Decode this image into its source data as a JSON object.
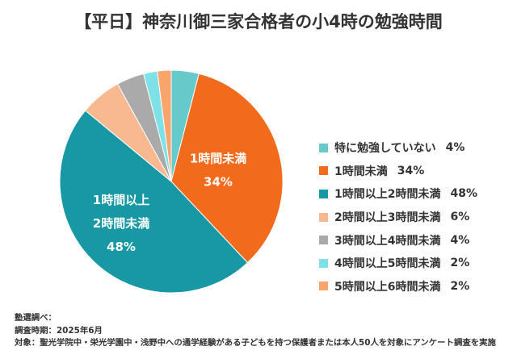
{
  "chart_data": {
    "type": "pie",
    "title": "【平日】神奈川御三家合格者の小4時の勉強時間",
    "unit": "%",
    "legend_position": "right",
    "slices": [
      {
        "label": "特に勉強していない",
        "value": 4,
        "color": "#66cacb"
      },
      {
        "label": "1時間未満",
        "value": 34,
        "color": "#f26a1c",
        "inner_label": [
          "1時間未満"
        ]
      },
      {
        "label": "1時間以上2時間未満",
        "value": 48,
        "color": "#1798a4",
        "inner_label": [
          "1時間以上",
          "2時間未満"
        ]
      },
      {
        "label": "2時間以上3時間未満",
        "value": 6,
        "color": "#f8b991"
      },
      {
        "label": "3時間以上4時間未満",
        "value": 4,
        "color": "#aaaaaa"
      },
      {
        "label": "4時間以上5時間未満",
        "value": 2,
        "color": "#7fe1e8"
      },
      {
        "label": "5時間以上6時間未満",
        "value": 2,
        "color": "#f8a46b"
      }
    ]
  },
  "notes": {
    "source": "塾選調べ：",
    "period": "調査時期：2025年6月",
    "target": "対象：聖光学院中・栄光学園中・浅野中への通学経験がある子どもを持つ保護者または本人50人を対象にアンケート調査を実施"
  }
}
